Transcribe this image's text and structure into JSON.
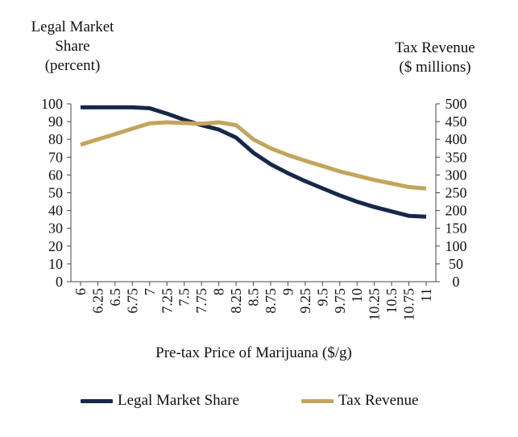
{
  "chart_data": {
    "type": "line",
    "title": "",
    "xlabel": "Pre-tax Price of Marijuana ($/g)",
    "ylabel_left": [
      "Legal Market",
      "Share",
      "(percent)"
    ],
    "ylabel_right": [
      "Tax Revenue",
      "($ millions)"
    ],
    "x": [
      6,
      6.25,
      6.5,
      6.75,
      7,
      7.25,
      7.5,
      7.75,
      8,
      8.25,
      8.5,
      8.75,
      9,
      9.25,
      9.5,
      9.75,
      10,
      10.25,
      10.5,
      10.75,
      11
    ],
    "xticks": [
      "6",
      "6.25",
      "6.5",
      "6.75",
      "7",
      "7.25",
      "7.5",
      "7.75",
      "8",
      "8.25",
      "8.5",
      "8.75",
      "9",
      "9.25",
      "9.5",
      "9.75",
      "10",
      "10.25",
      "10.5",
      "10.75",
      "11"
    ],
    "ylim_left": [
      0,
      100
    ],
    "yticks_left": [
      0,
      10,
      20,
      30,
      40,
      50,
      60,
      70,
      80,
      90,
      100
    ],
    "ylim_right": [
      0,
      500
    ],
    "yticks_right": [
      0,
      50,
      100,
      150,
      200,
      250,
      300,
      350,
      400,
      450,
      500
    ],
    "grid": false,
    "legend_position": "bottom",
    "series": [
      {
        "name": "Legal Market Share",
        "axis": "left",
        "color": "#16284a",
        "values": [
          98,
          98,
          98,
          98,
          97.5,
          94.5,
          91,
          88,
          85.5,
          81,
          72.5,
          66,
          61,
          56.5,
          52.5,
          48.5,
          45,
          42,
          39.5,
          37,
          36.5
        ]
      },
      {
        "name": "Tax Revenue",
        "axis": "right",
        "color": "#c3a55b",
        "values": [
          385,
          400,
          415,
          430,
          445,
          448,
          446,
          444,
          448,
          440,
          400,
          375,
          356,
          340,
          325,
          310,
          298,
          286,
          276,
          266,
          262
        ]
      }
    ]
  }
}
